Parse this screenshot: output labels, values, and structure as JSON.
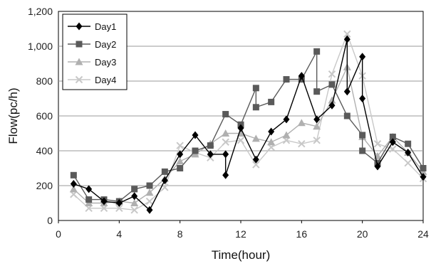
{
  "chart_data": {
    "type": "line",
    "xlabel": "Time(hour)",
    "ylabel": "Flow(pc/h)",
    "xlim": [
      0,
      24
    ],
    "ylim": [
      0,
      1200
    ],
    "x_ticks": [
      "0",
      "4",
      "8",
      "12",
      "16",
      "20",
      "24"
    ],
    "y_ticks": [
      "0",
      "200",
      "400",
      "600",
      "800",
      "1,000",
      "1,200"
    ],
    "grid": "horizontal",
    "legend_position": "top-left",
    "series": [
      {
        "name": "Day1",
        "marker": "diamond",
        "color": "#000000",
        "x": [
          1,
          2,
          3,
          4,
          5,
          6,
          7,
          8,
          9,
          10,
          11,
          11,
          12,
          13,
          14,
          15,
          16,
          17,
          18,
          19,
          19,
          20,
          20,
          21,
          22,
          23,
          24
        ],
        "y": [
          210,
          180,
          110,
          100,
          140,
          60,
          230,
          380,
          490,
          380,
          380,
          260,
          530,
          350,
          510,
          580,
          830,
          580,
          660,
          1040,
          740,
          940,
          700,
          310,
          450,
          390,
          250
        ]
      },
      {
        "name": "Day2",
        "marker": "square",
        "color": "#5a5a5a",
        "x": [
          1,
          2,
          3,
          4,
          5,
          6,
          7,
          8,
          9,
          10,
          11,
          12,
          13,
          13,
          14,
          15,
          16,
          17,
          17,
          18,
          19,
          20,
          20,
          21,
          22,
          23,
          24
        ],
        "y": [
          260,
          120,
          120,
          110,
          180,
          200,
          280,
          300,
          400,
          430,
          610,
          550,
          760,
          650,
          680,
          810,
          810,
          970,
          740,
          780,
          600,
          490,
          400,
          330,
          480,
          440,
          300
        ]
      },
      {
        "name": "Day3",
        "marker": "triangle",
        "color": "#b0b0b0",
        "x": [
          1,
          2,
          3,
          4,
          5,
          6,
          7,
          8,
          9,
          10,
          11,
          12,
          13,
          14,
          15,
          16,
          17,
          18,
          19,
          20,
          21,
          22,
          23,
          24
        ],
        "y": [
          180,
          100,
          100,
          110,
          100,
          160,
          240,
          340,
          380,
          440,
          500,
          500,
          470,
          450,
          490,
          560,
          540,
          690,
          880,
          480,
          370,
          480,
          390,
          280
        ]
      },
      {
        "name": "Day4",
        "marker": "x",
        "color": "#c8c8c8",
        "x": [
          1,
          2,
          3,
          4,
          5,
          6,
          7,
          8,
          9,
          10,
          11,
          12,
          13,
          14,
          15,
          16,
          17,
          18,
          19,
          20,
          21,
          22,
          23,
          24
        ],
        "y": [
          150,
          70,
          70,
          70,
          60,
          110,
          190,
          430,
          390,
          360,
          450,
          460,
          320,
          420,
          460,
          440,
          460,
          840,
          1070,
          830,
          440,
          410,
          330,
          240
        ]
      }
    ]
  }
}
